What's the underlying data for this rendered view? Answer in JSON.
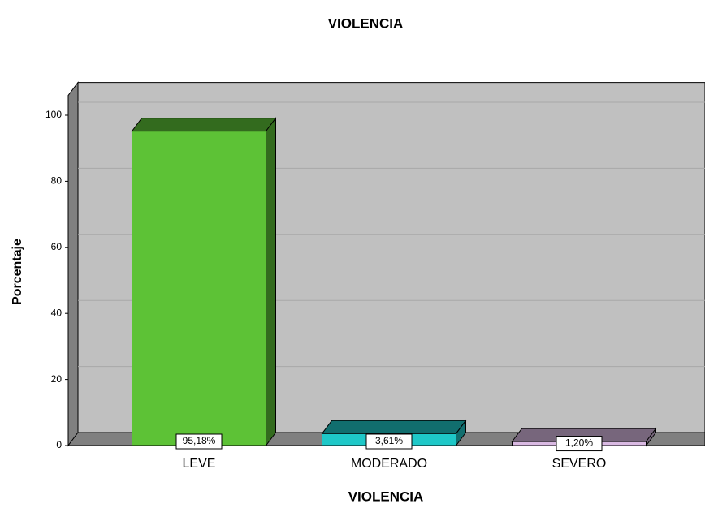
{
  "chart_data": {
    "type": "bar3d",
    "title": "VIOLENCIA",
    "x_label": "VIOLENCIA",
    "y_label": "Porcentaje",
    "categories": [
      "LEVE",
      "MODERADO",
      "SEVERO"
    ],
    "values": [
      95.18,
      3.61,
      1.2
    ],
    "value_labels": [
      "95,18%",
      "3,61%",
      "1,20%"
    ],
    "colors": [
      "#5dc236",
      "#1ec8c8",
      "#d9b9e2"
    ],
    "ylim": [
      0,
      106
    ],
    "yticks": [
      0,
      20,
      40,
      60,
      80,
      100
    ],
    "grid": true
  }
}
